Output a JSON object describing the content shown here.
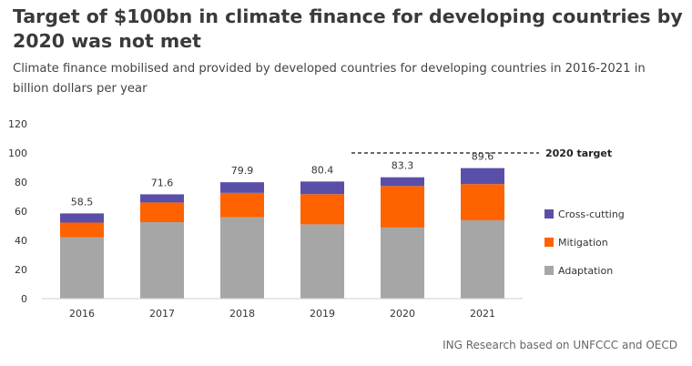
{
  "header": {
    "title": "Target of $100bn in climate finance for developing countries by 2020 was not met",
    "subtitle": "Climate finance mobilised and provided by developed countries for developing countries in 2016-2021 in billion dollars per year"
  },
  "chart_data": {
    "type": "bar",
    "stacked": true,
    "categories": [
      "2016",
      "2017",
      "2018",
      "2019",
      "2020",
      "2021"
    ],
    "series": [
      {
        "name": "Adaptation",
        "color": "#a6a6a6",
        "values": [
          42.0,
          52.5,
          55.8,
          51.0,
          48.8,
          53.8
        ]
      },
      {
        "name": "Mitigation",
        "color": "#ff6200",
        "values": [
          10.2,
          13.5,
          16.8,
          20.7,
          28.5,
          24.8
        ]
      },
      {
        "name": "Cross-cutting",
        "color": "#5a4fa8",
        "values": [
          6.3,
          5.6,
          7.3,
          8.7,
          6.0,
          11.0
        ]
      }
    ],
    "totals": [
      "58.5",
      "71.6",
      "79.9",
      "80.4",
      "83.3",
      "89.6"
    ],
    "yticks": [
      "0",
      "20",
      "40",
      "60",
      "80",
      "100",
      "120"
    ],
    "ylim": [
      0,
      120
    ],
    "target": {
      "value": 100,
      "label": "2020 target"
    },
    "legend_position": "right",
    "grid": false
  },
  "footer": {
    "source": "ING Research based on UNFCCC and OECD"
  }
}
